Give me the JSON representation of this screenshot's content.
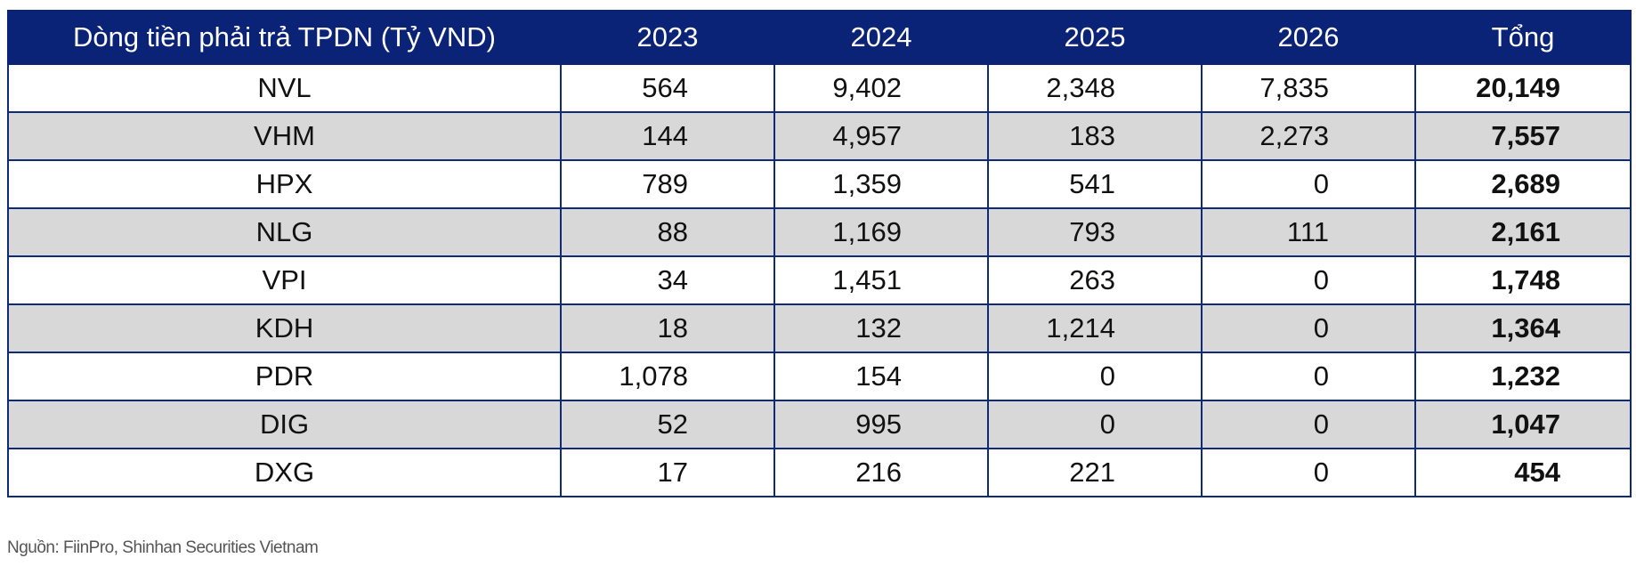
{
  "table": {
    "headers": [
      "Dòng tiền phải trả TPDN (Tỷ VND)",
      "2023",
      "2024",
      "2025",
      "2026",
      "Tổng"
    ],
    "rows": [
      {
        "name": "NVL",
        "y2023": "564",
        "y2024": "9,402",
        "y2025": "2,348",
        "y2026": "7,835",
        "total": "20,149"
      },
      {
        "name": "VHM",
        "y2023": "144",
        "y2024": "4,957",
        "y2025": "183",
        "y2026": "2,273",
        "total": "7,557"
      },
      {
        "name": "HPX",
        "y2023": "789",
        "y2024": "1,359",
        "y2025": "541",
        "y2026": "0",
        "total": "2,689"
      },
      {
        "name": "NLG",
        "y2023": "88",
        "y2024": "1,169",
        "y2025": "793",
        "y2026": "111",
        "total": "2,161"
      },
      {
        "name": "VPI",
        "y2023": "34",
        "y2024": "1,451",
        "y2025": "263",
        "y2026": "0",
        "total": "1,748"
      },
      {
        "name": "KDH",
        "y2023": "18",
        "y2024": "132",
        "y2025": "1,214",
        "y2026": "0",
        "total": "1,364"
      },
      {
        "name": "PDR",
        "y2023": "1,078",
        "y2024": "154",
        "y2025": "0",
        "y2026": "0",
        "total": "1,232"
      },
      {
        "name": "DIG",
        "y2023": "52",
        "y2024": "995",
        "y2025": "0",
        "y2026": "0",
        "total": "1,047"
      },
      {
        "name": "DXG",
        "y2023": "17",
        "y2024": "216",
        "y2025": "221",
        "y2026": "0",
        "total": "454"
      }
    ]
  },
  "source": "Nguồn: FiinPro, Shinhan Securities Vietnam",
  "colors": {
    "header_bg": "#0a2377",
    "header_text": "#ffffff",
    "row_alt_bg": "#d8d8d8",
    "border": "#0f2a78"
  }
}
